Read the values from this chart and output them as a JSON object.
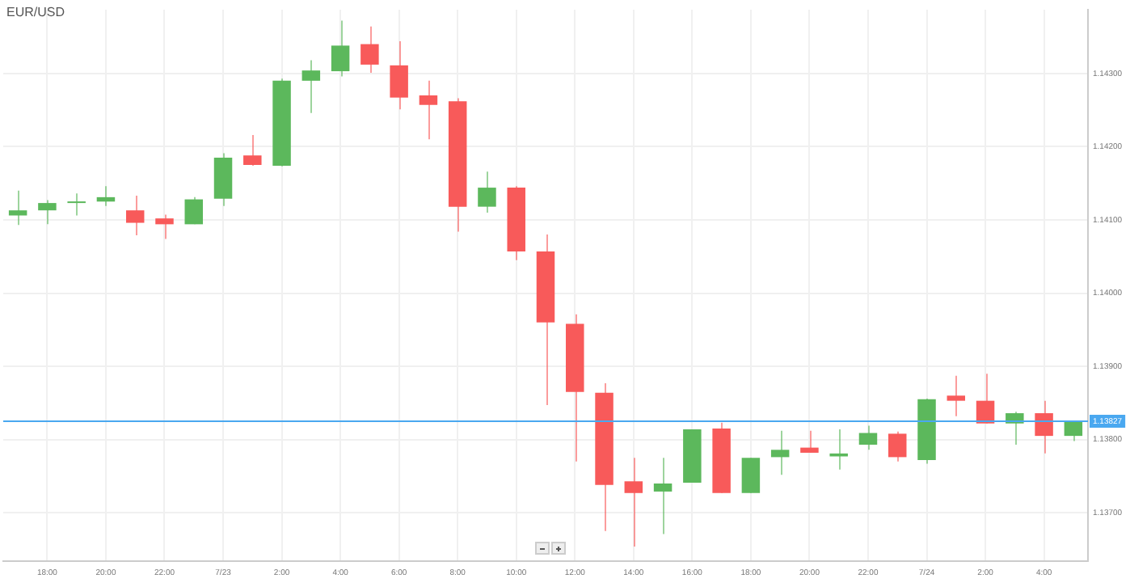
{
  "chart_data": {
    "type": "candlestick",
    "title": "EUR/USD",
    "categories": [
      null,
      "18:00",
      null,
      "20:00",
      null,
      "22:00",
      null,
      "7/23",
      null,
      "2:00",
      null,
      "4:00",
      null,
      "6:00",
      null,
      "8:00",
      null,
      "10:00",
      null,
      "12:00",
      null,
      "14:00",
      null,
      "16:00",
      null,
      "18:00",
      null,
      "20:00",
      null,
      "22:00",
      null,
      "7/24",
      null,
      "2:00",
      null,
      "4:00",
      null
    ],
    "ohlc": [
      [
        1.14106,
        1.1414,
        1.14093,
        1.14113
      ],
      [
        1.14113,
        1.14127,
        1.14094,
        1.14123
      ],
      [
        1.14123,
        1.14136,
        1.14106,
        1.14125
      ],
      [
        1.14125,
        1.14146,
        1.14119,
        1.14131
      ],
      [
        1.14113,
        1.14133,
        1.14079,
        1.14096
      ],
      [
        1.14102,
        1.14107,
        1.14074,
        1.14094
      ],
      [
        1.14094,
        1.14131,
        1.14094,
        1.14128
      ],
      [
        1.14129,
        1.14191,
        1.14119,
        1.14185
      ],
      [
        1.14188,
        1.14216,
        1.14174,
        1.14175
      ],
      [
        1.14174,
        1.14293,
        1.14173,
        1.1429
      ],
      [
        1.1429,
        1.14318,
        1.14246,
        1.14304
      ],
      [
        1.14303,
        1.14372,
        1.14296,
        1.14338
      ],
      [
        1.1434,
        1.14364,
        1.14301,
        1.14312
      ],
      [
        1.14311,
        1.14344,
        1.14251,
        1.14267
      ],
      [
        1.1427,
        1.1429,
        1.1421,
        1.14257
      ],
      [
        1.14262,
        1.14266,
        1.14084,
        1.14118
      ],
      [
        1.14118,
        1.14166,
        1.1411,
        1.14144
      ],
      [
        1.14144,
        1.14146,
        1.14045,
        1.14057
      ],
      [
        1.14057,
        1.1408,
        1.13847,
        1.1396
      ],
      [
        1.13958,
        1.13971,
        1.1377,
        1.13865
      ],
      [
        1.13864,
        1.13877,
        1.13675,
        1.13738
      ],
      [
        1.13743,
        1.13775,
        1.13654,
        1.13727
      ],
      [
        1.13729,
        1.13775,
        1.13671,
        1.1374
      ],
      [
        1.13741,
        1.13814,
        1.13741,
        1.13814
      ],
      [
        1.13815,
        1.13823,
        1.13727,
        1.13727
      ],
      [
        1.13727,
        1.13775,
        1.13727,
        1.13775
      ],
      [
        1.13776,
        1.13812,
        1.13752,
        1.13786
      ],
      [
        1.13789,
        1.13812,
        1.13782,
        1.13782
      ],
      [
        1.13777,
        1.13814,
        1.13759,
        1.13781
      ],
      [
        1.13793,
        1.13819,
        1.13786,
        1.13809
      ],
      [
        1.13808,
        1.13811,
        1.1377,
        1.13776
      ],
      [
        1.13772,
        1.13856,
        1.13767,
        1.13855
      ],
      [
        1.1386,
        1.13887,
        1.13832,
        1.13853
      ],
      [
        1.13853,
        1.1389,
        1.13822,
        1.13822
      ],
      [
        1.13822,
        1.13838,
        1.13793,
        1.13836
      ],
      [
        1.13836,
        1.13853,
        1.13781,
        1.13805
      ],
      [
        1.13805,
        1.13826,
        1.13798,
        1.13826
      ]
    ],
    "colors": [
      "#5cb85c",
      "#5cb85c",
      "#5cb85c",
      "#5cb85c",
      "#f85a5a",
      "#f85a5a",
      "#5cb85c",
      "#5cb85c",
      "#f85a5a",
      "#5cb85c",
      "#5cb85c",
      "#5cb85c",
      "#f85a5a",
      "#f85a5a",
      "#f85a5a",
      "#f85a5a",
      "#5cb85c",
      "#f85a5a",
      "#f85a5a",
      "#f85a5a",
      "#f85a5a",
      "#f85a5a",
      "#5cb85c",
      "#5cb85c",
      "#f85a5a",
      "#5cb85c",
      "#5cb85c",
      "#f85a5a",
      "#5cb85c",
      "#5cb85c",
      "#f85a5a",
      "#5cb85c",
      "#f85a5a",
      "#f85a5a",
      "#5cb85c",
      "#f85a5a",
      "#5cb85c"
    ],
    "ylim": [
      1.13634,
      1.14387
    ],
    "yticks": [
      {
        "value": 1.137,
        "label": "1.13700"
      },
      {
        "value": 1.138,
        "label": "1.13800"
      },
      {
        "value": 1.139,
        "label": "1.13900"
      },
      {
        "value": 1.14,
        "label": "1.14000"
      },
      {
        "value": 1.141,
        "label": "1.14100"
      },
      {
        "value": 1.142,
        "label": "1.14200"
      },
      {
        "value": 1.143,
        "label": "1.14300"
      }
    ],
    "ref_lines": [
      {
        "axis": "y",
        "value": 1.13827,
        "label": "1.13827",
        "color": "#4aa8f0"
      }
    ],
    "grid": true
  }
}
